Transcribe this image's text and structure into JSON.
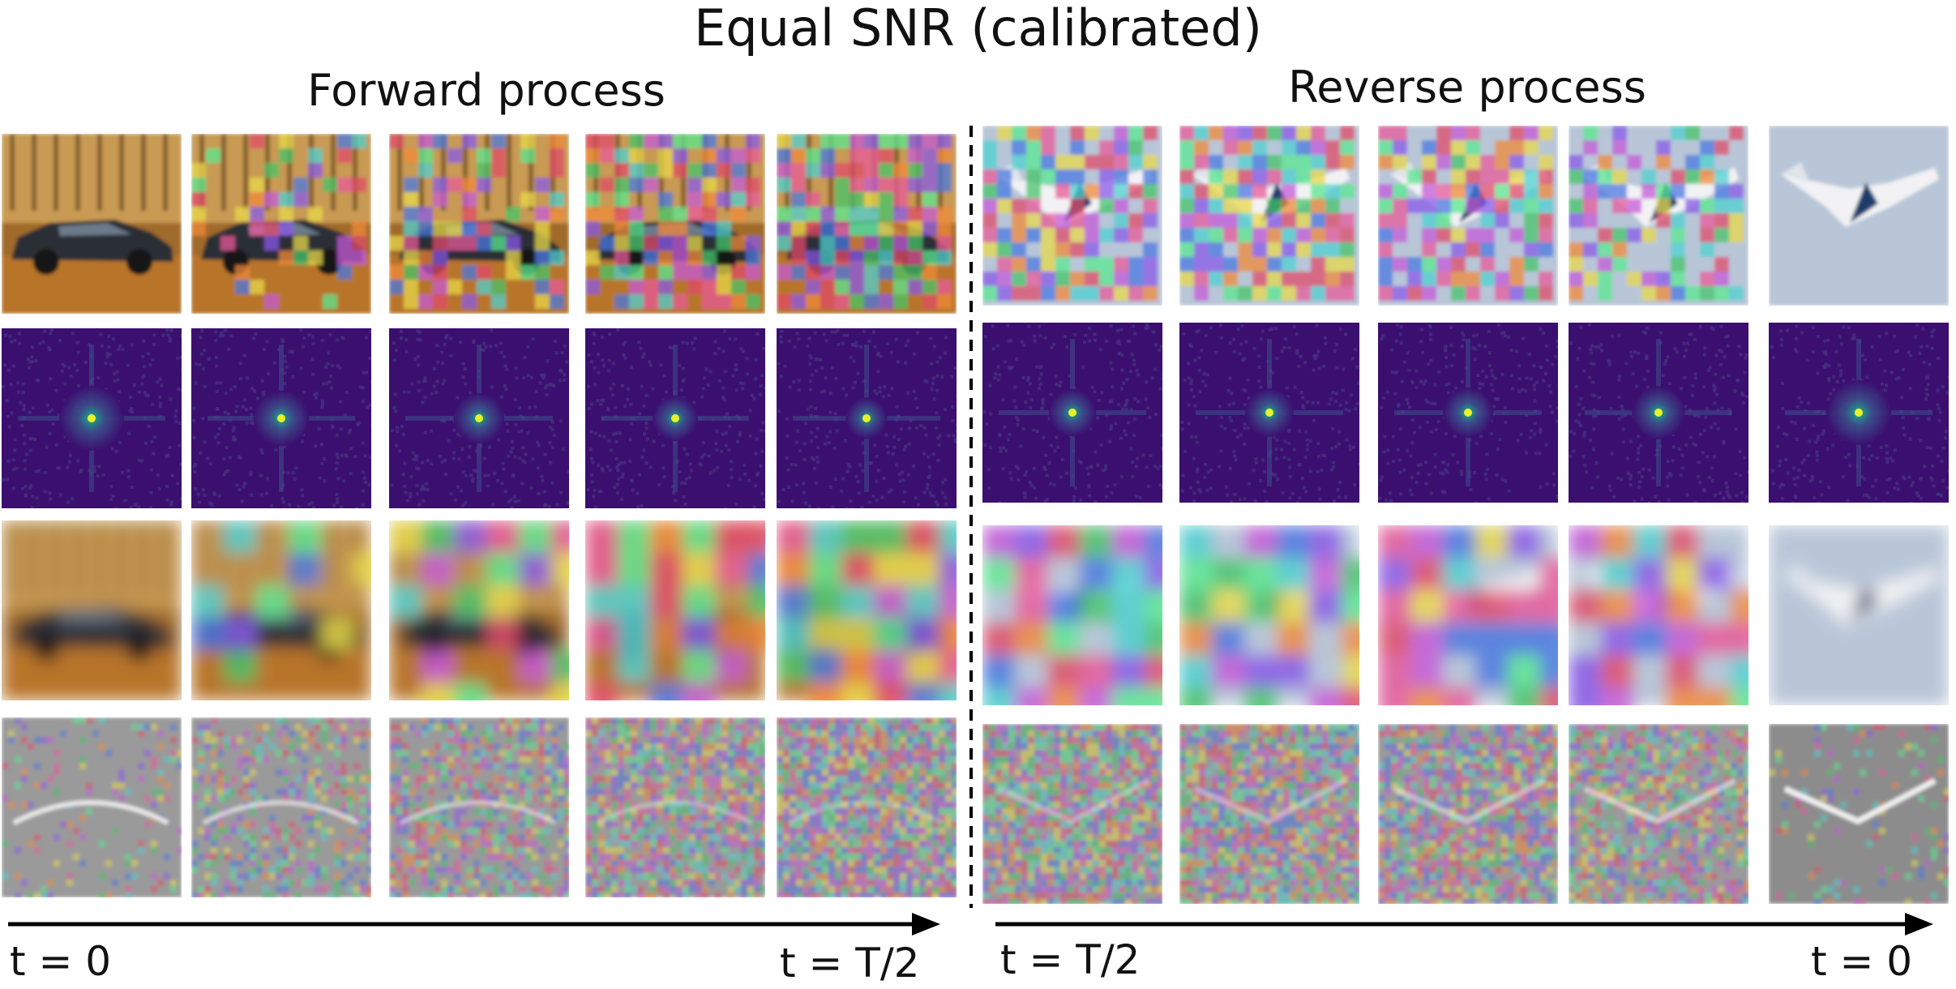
{
  "title": "Equal SNR (calibrated)",
  "forward": {
    "title": "Forward process",
    "start_label": "t = 0",
    "end_label": "t = T/2"
  },
  "reverse": {
    "title": "Reverse process",
    "start_label": "t = T/2",
    "end_label": "t = 0"
  },
  "rows": [
    {
      "name": "image",
      "forward_subject": "car",
      "reverse_subject": "airplane"
    },
    {
      "name": "spectrum"
    },
    {
      "name": "low-pass"
    },
    {
      "name": "high-pass"
    }
  ],
  "noise_levels": {
    "forward": [
      0,
      0.35,
      0.55,
      0.75,
      0.9
    ],
    "reverse": [
      0.9,
      0.85,
      0.75,
      0.6,
      0
    ]
  },
  "colors": {
    "spectrum_bg": "#3b0f70",
    "spectrum_peak": "#e8f229",
    "spectrum_mid": "#21918c",
    "sky": "#b8c6d8",
    "autumn": "#b07a2a",
    "divider": "#000000",
    "arrow": "#000000"
  }
}
